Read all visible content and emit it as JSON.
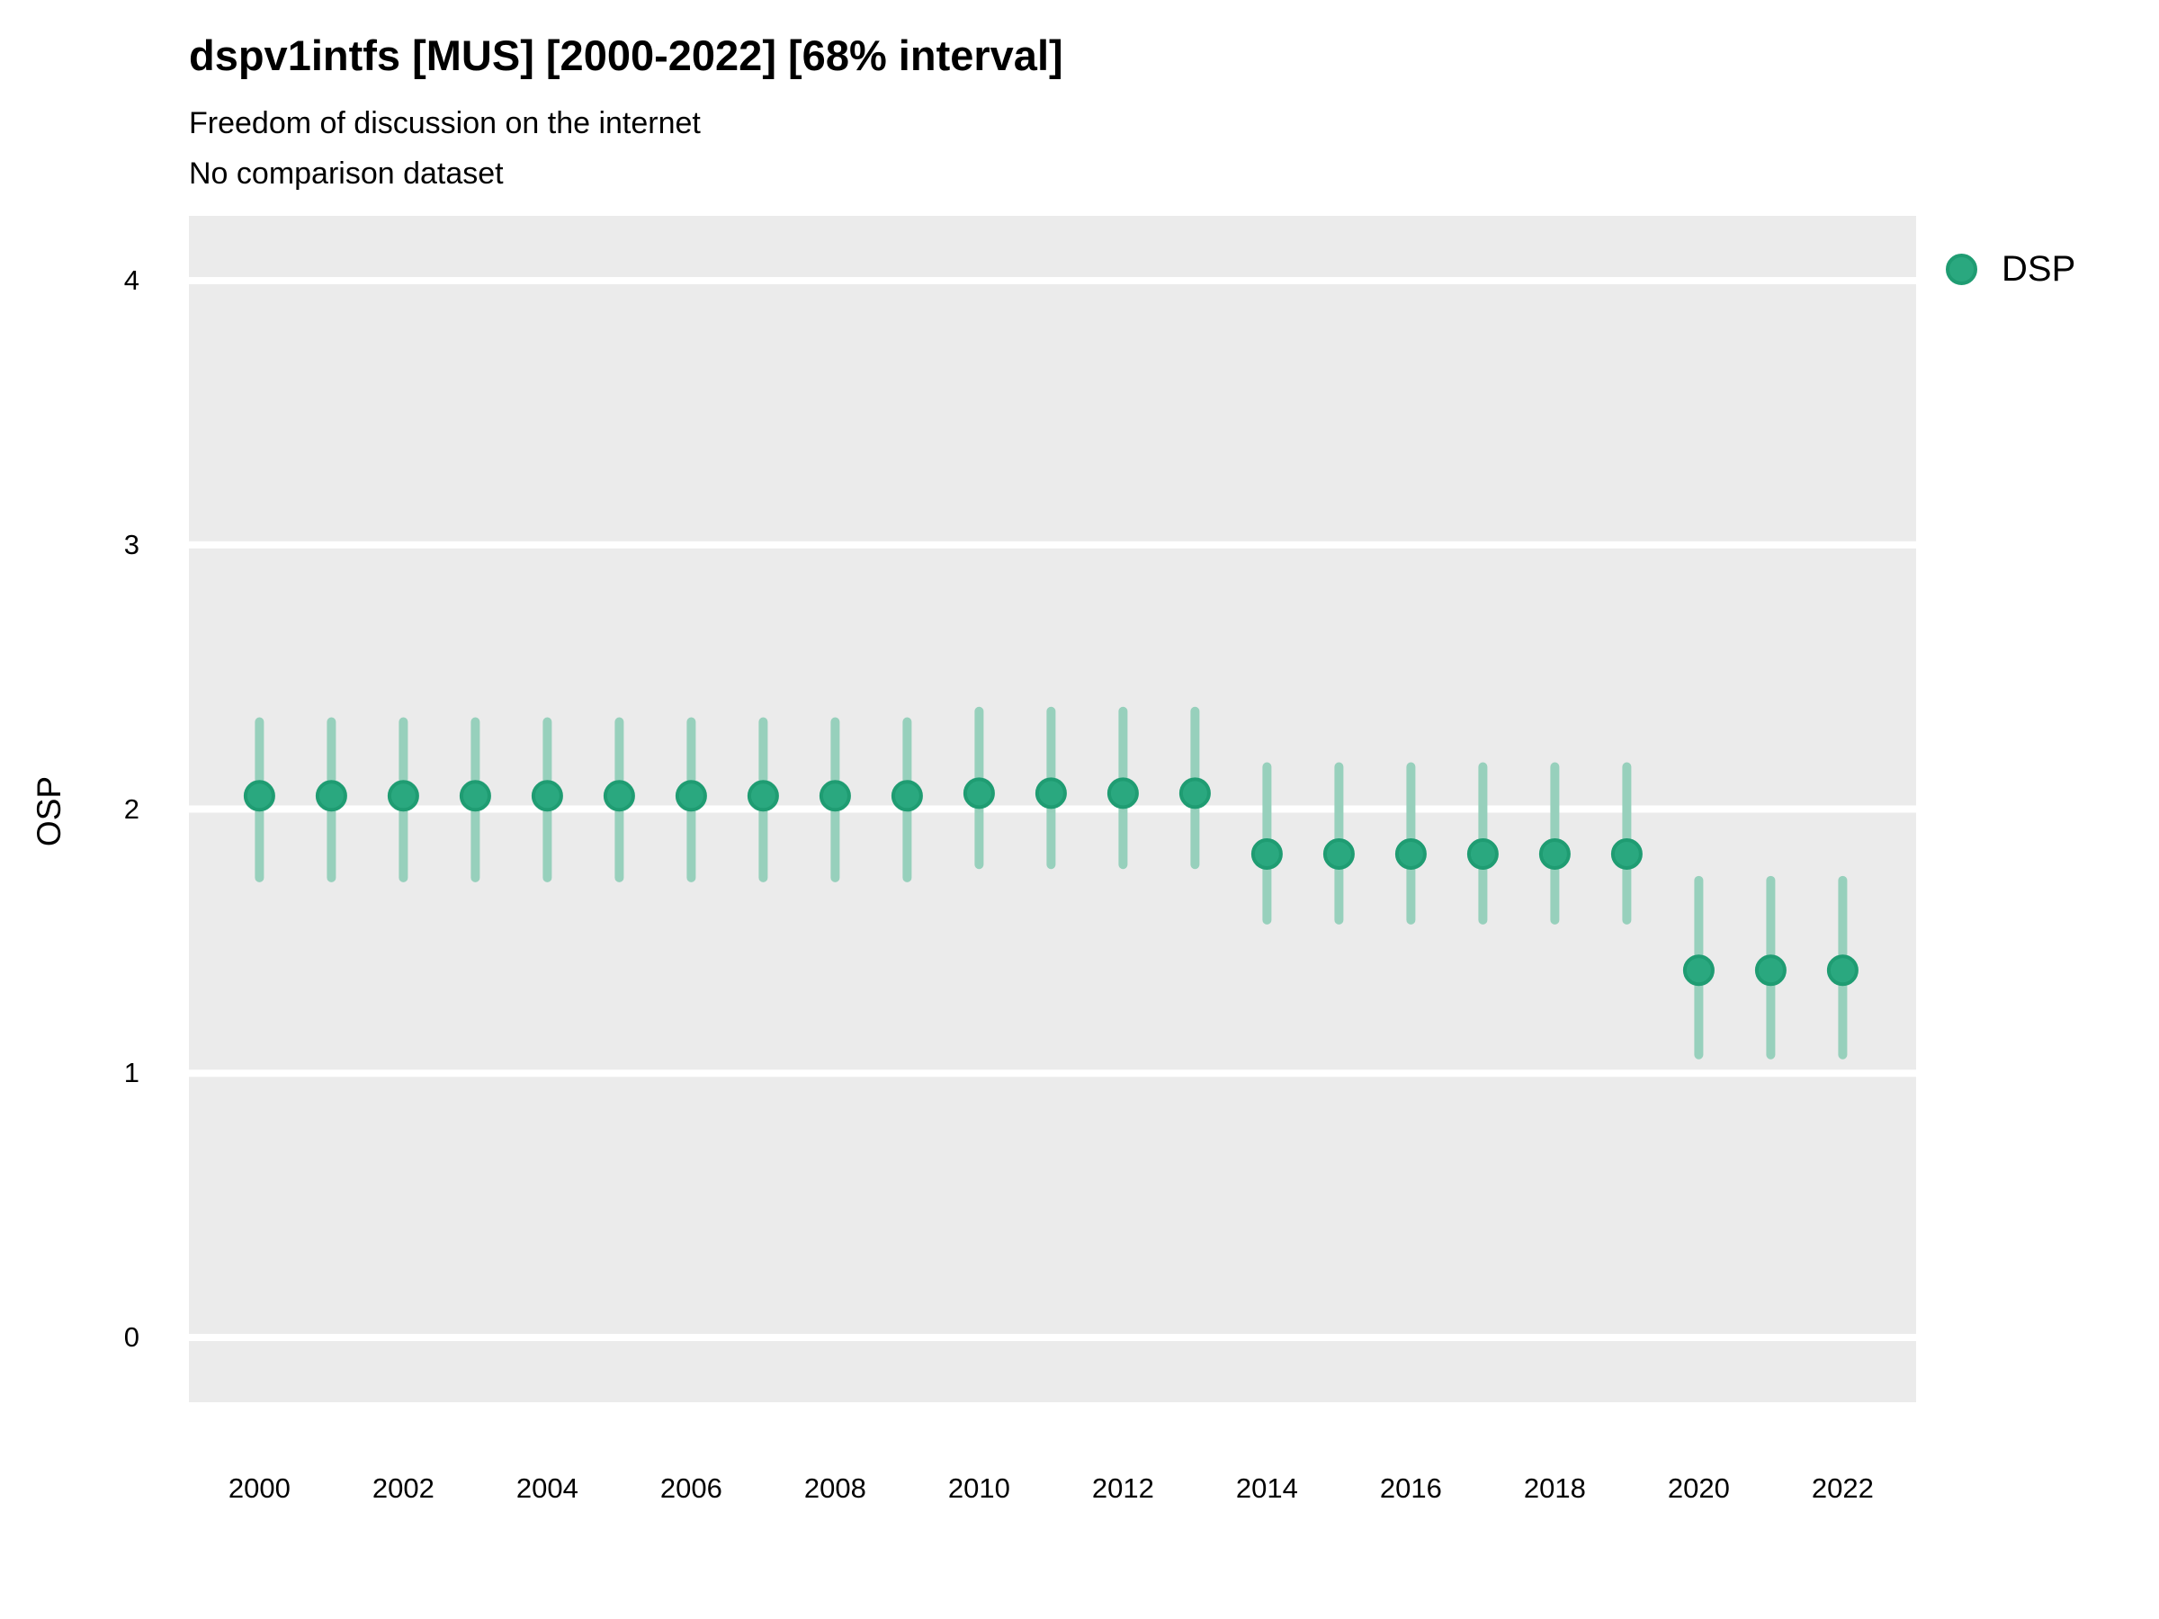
{
  "colors": {
    "panel_bg": "#ebebeb",
    "grid": "#ffffff",
    "point_fill": "#2aa87f",
    "point_stroke": "#1f9c72",
    "interval": "#97d0bc",
    "text": "#000000"
  },
  "chart_data": {
    "type": "pointrange",
    "title": "dspv1intfs [MUS] [2000-2022] [68% interval]",
    "subtitle": "Freedom of discussion on the internet",
    "subtitle2": "No comparison dataset",
    "xlabel": "",
    "ylabel": "OSP",
    "interval_level": "68%",
    "grid": "horizontal-white-on-gray",
    "legend": {
      "position": "right-top",
      "items": [
        {
          "label": "DSP"
        }
      ]
    },
    "x_ticks": [
      2000,
      2002,
      2004,
      2006,
      2008,
      2010,
      2012,
      2014,
      2016,
      2018,
      2020,
      2022
    ],
    "y_ticks": [
      0,
      1,
      2,
      3,
      4
    ],
    "xlim": [
      1999.02,
      2023.02
    ],
    "ylim": [
      -0.245,
      4.245
    ],
    "series": [
      {
        "name": "DSP",
        "points": [
          {
            "x": 2000,
            "y": 2.05,
            "lo": 1.74,
            "hi": 2.33
          },
          {
            "x": 2001,
            "y": 2.05,
            "lo": 1.74,
            "hi": 2.33
          },
          {
            "x": 2002,
            "y": 2.05,
            "lo": 1.74,
            "hi": 2.33
          },
          {
            "x": 2003,
            "y": 2.05,
            "lo": 1.74,
            "hi": 2.33
          },
          {
            "x": 2004,
            "y": 2.05,
            "lo": 1.74,
            "hi": 2.33
          },
          {
            "x": 2005,
            "y": 2.05,
            "lo": 1.74,
            "hi": 2.33
          },
          {
            "x": 2006,
            "y": 2.05,
            "lo": 1.74,
            "hi": 2.33
          },
          {
            "x": 2007,
            "y": 2.05,
            "lo": 1.74,
            "hi": 2.33
          },
          {
            "x": 2008,
            "y": 2.05,
            "lo": 1.74,
            "hi": 2.33
          },
          {
            "x": 2009,
            "y": 2.05,
            "lo": 1.74,
            "hi": 2.33
          },
          {
            "x": 2010,
            "y": 2.06,
            "lo": 1.79,
            "hi": 2.37
          },
          {
            "x": 2011,
            "y": 2.06,
            "lo": 1.79,
            "hi": 2.37
          },
          {
            "x": 2012,
            "y": 2.06,
            "lo": 1.79,
            "hi": 2.37
          },
          {
            "x": 2013,
            "y": 2.06,
            "lo": 1.79,
            "hi": 2.37
          },
          {
            "x": 2014,
            "y": 1.83,
            "lo": 1.58,
            "hi": 2.16
          },
          {
            "x": 2015,
            "y": 1.83,
            "lo": 1.58,
            "hi": 2.16
          },
          {
            "x": 2016,
            "y": 1.83,
            "lo": 1.58,
            "hi": 2.16
          },
          {
            "x": 2017,
            "y": 1.83,
            "lo": 1.58,
            "hi": 2.16
          },
          {
            "x": 2018,
            "y": 1.83,
            "lo": 1.58,
            "hi": 2.16
          },
          {
            "x": 2019,
            "y": 1.83,
            "lo": 1.58,
            "hi": 2.16
          },
          {
            "x": 2020,
            "y": 1.39,
            "lo": 1.07,
            "hi": 1.73
          },
          {
            "x": 2021,
            "y": 1.39,
            "lo": 1.07,
            "hi": 1.73
          },
          {
            "x": 2022,
            "y": 1.39,
            "lo": 1.07,
            "hi": 1.73
          }
        ]
      }
    ]
  }
}
